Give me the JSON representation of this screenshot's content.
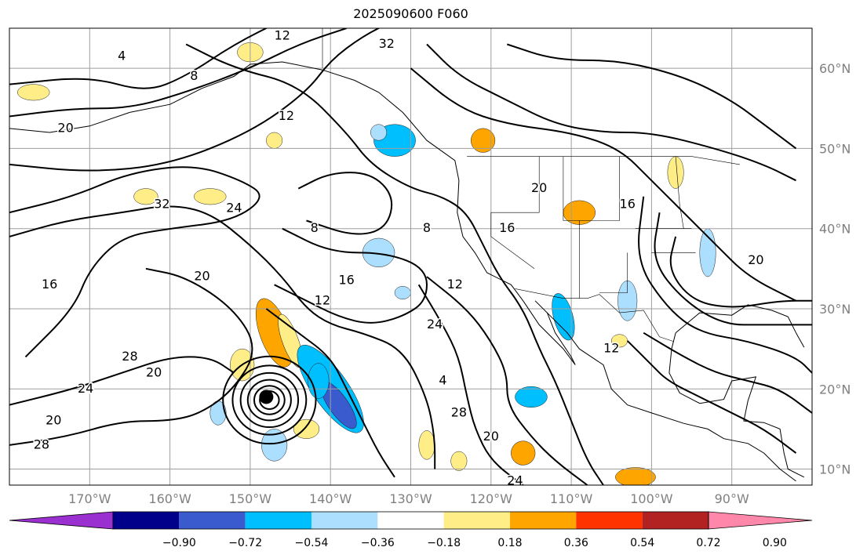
{
  "title": "2025090600 F060",
  "map": {
    "lon_range": [
      -180,
      -80
    ],
    "lat_range": [
      8,
      65
    ],
    "gridlines": true,
    "lon_labels": [
      "170°W",
      "160°W",
      "150°W",
      "140°W",
      "130°W",
      "120°W",
      "110°W",
      "100°W",
      "90°W"
    ],
    "lat_labels": [
      "10°N",
      "20°N",
      "30°N",
      "40°N",
      "50°N",
      "60°N"
    ],
    "contour_labels": [
      "4",
      "8",
      "12",
      "12",
      "12",
      "16",
      "16",
      "20",
      "20",
      "20",
      "20",
      "24",
      "24",
      "28",
      "28",
      "32",
      "32",
      "8",
      "8",
      "12",
      "20",
      "24",
      "4",
      "28",
      "12",
      "16",
      "20",
      "24",
      "16",
      "20"
    ],
    "storm_center": {
      "lon": -148.0,
      "lat": 19.0
    }
  },
  "colorbar": {
    "colors": [
      "#9b30d0",
      "#00008b",
      "#3a5bcd",
      "#00bfff",
      "#acdefe",
      "#ffffff",
      "#ffee88",
      "#ffa500",
      "#ff3300",
      "#b22222",
      "#ff88aa"
    ],
    "tick_labels": [
      "−0.90",
      "−0.72",
      "−0.54",
      "−0.36",
      "−0.18",
      "0.18",
      "0.36",
      "0.54",
      "0.72",
      "0.90"
    ],
    "extend": "both"
  },
  "palette": {
    "grid": "#9e9e9e",
    "coast": "#000000",
    "contour": "#000000",
    "pos1": "#ffee88",
    "pos2": "#ffa500",
    "neg1": "#acdefe",
    "neg2": "#00bfff",
    "neg3": "#3a5bcd"
  }
}
